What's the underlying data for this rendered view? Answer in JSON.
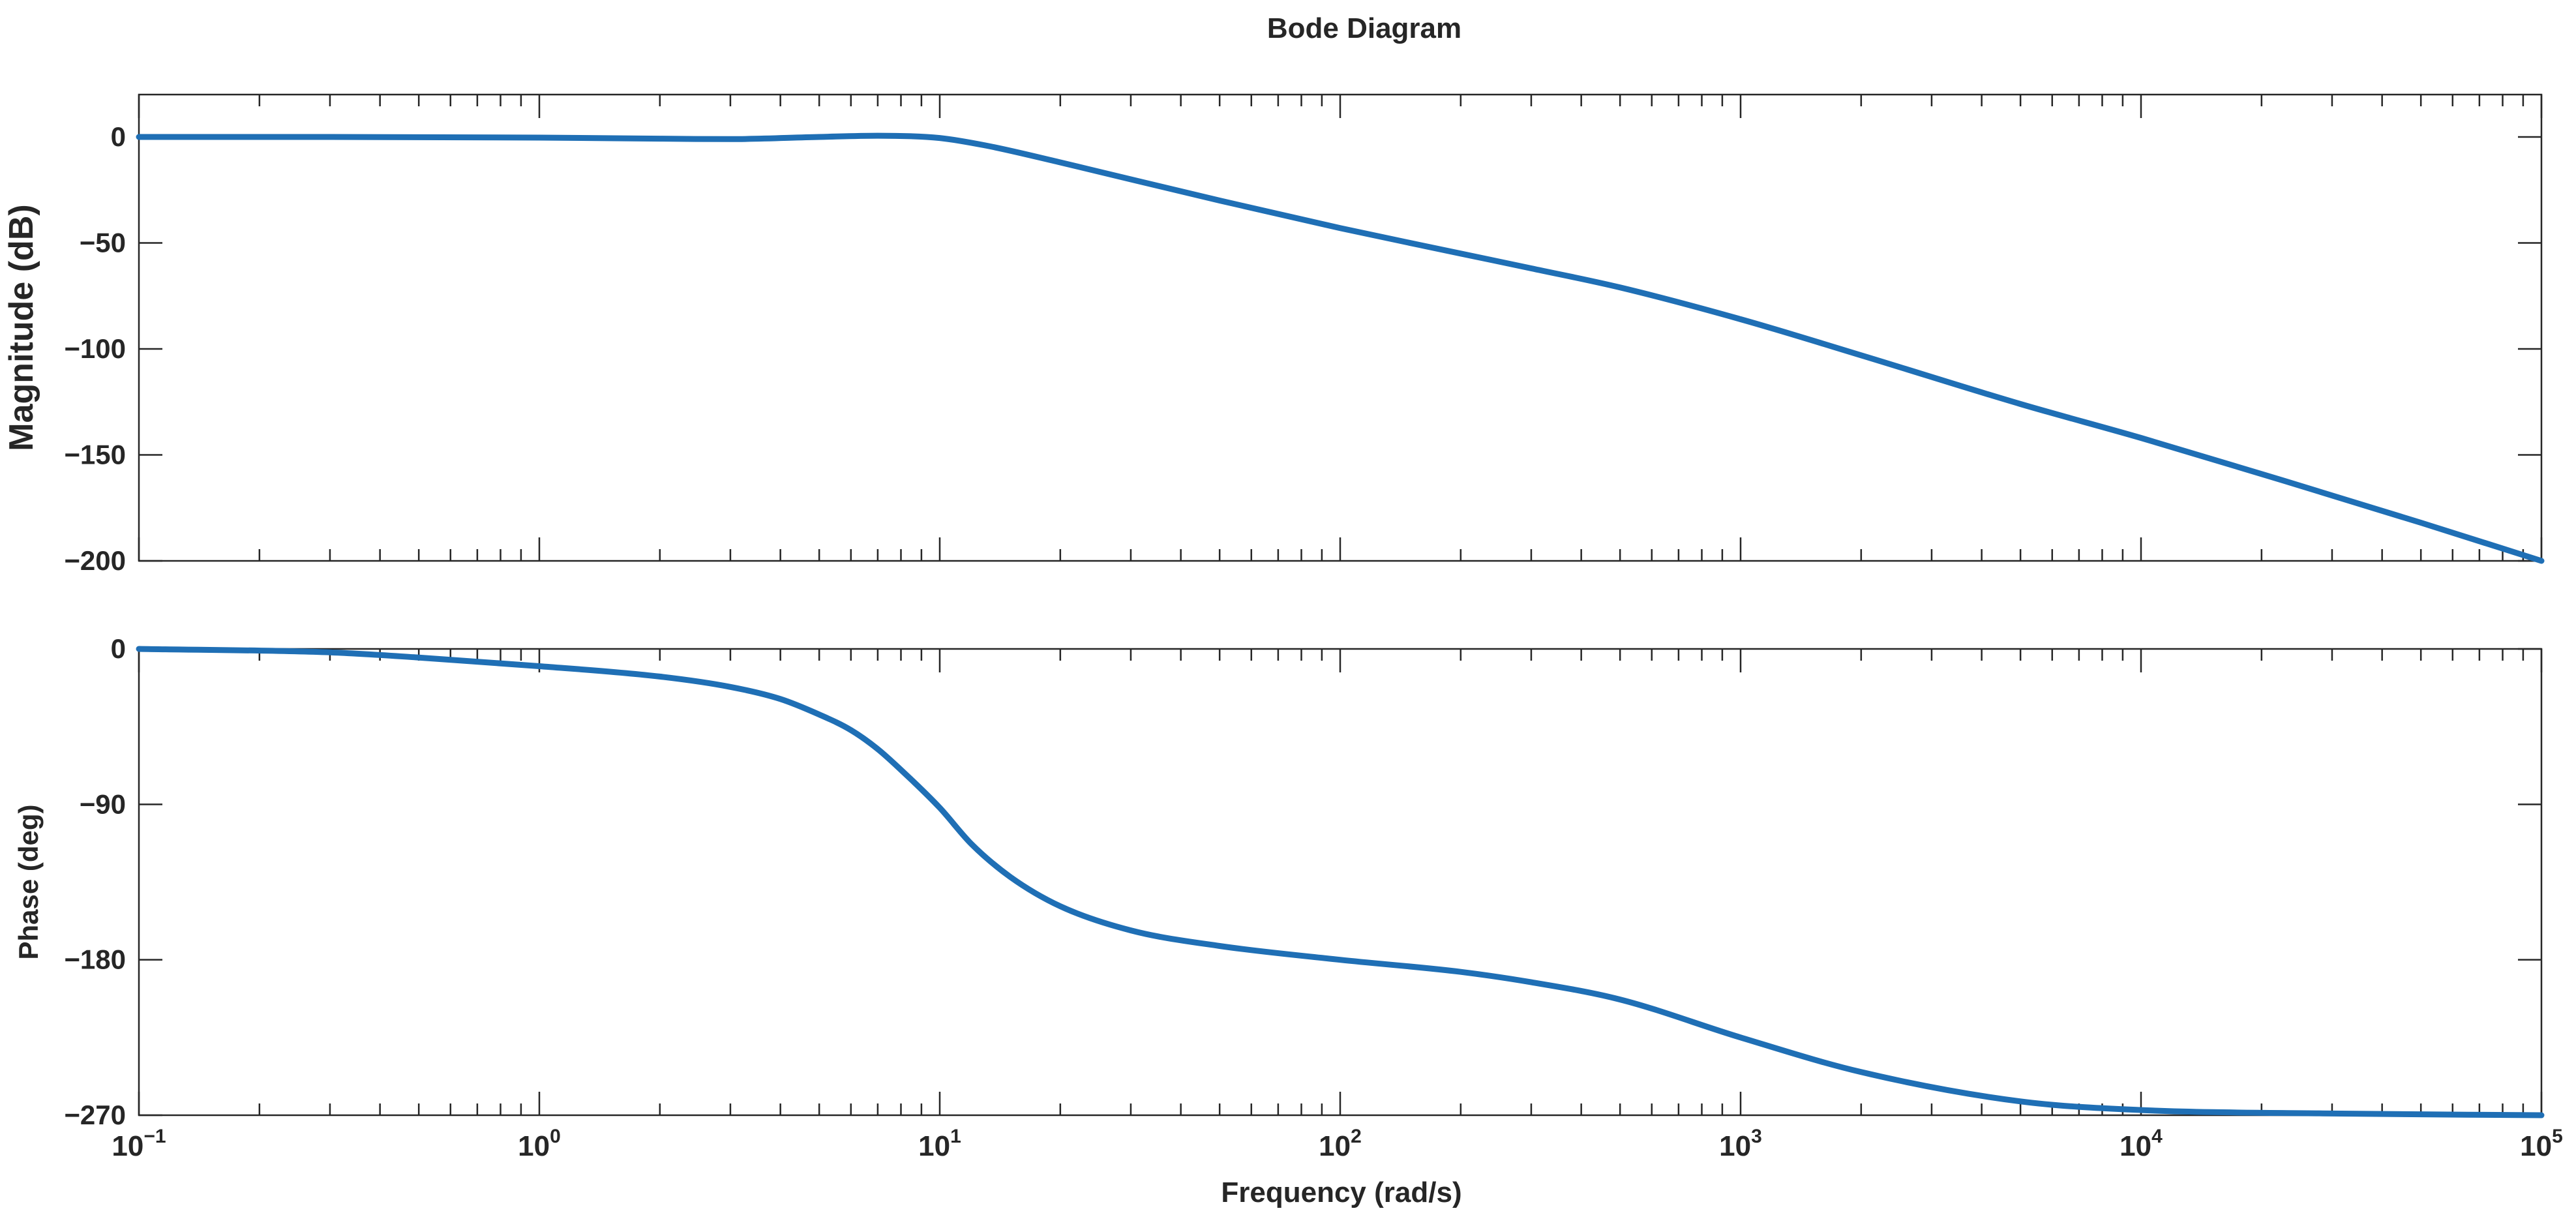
{
  "chart_data": {
    "type": "line",
    "title": "Bode Diagram",
    "xlabel": "Frequency (rad/s)",
    "x_scale": "log",
    "xlim": [
      0.1,
      100000
    ],
    "x_ticks": [
      {
        "value": 0.1,
        "base": "10",
        "exp": "−1"
      },
      {
        "value": 1,
        "base": "10",
        "exp": "0"
      },
      {
        "value": 10,
        "base": "10",
        "exp": "1"
      },
      {
        "value": 100,
        "base": "10",
        "exp": "2"
      },
      {
        "value": 1000,
        "base": "10",
        "exp": "3"
      },
      {
        "value": 10000,
        "base": "10",
        "exp": "4"
      },
      {
        "value": 100000,
        "base": "10",
        "exp": "5"
      }
    ],
    "grid": false,
    "panels": [
      {
        "ylabel": "Magnitude (dB)",
        "ylim": [
          -200,
          20
        ],
        "y_ticks": [
          {
            "value": 0,
            "label": "0"
          },
          {
            "value": -50,
            "label": "−50"
          },
          {
            "value": -100,
            "label": "−100"
          },
          {
            "value": -150,
            "label": "−150"
          },
          {
            "value": -200,
            "label": "−200"
          }
        ],
        "series": [
          {
            "color": "#1f6fb5",
            "x": [
              0.1,
              0.3,
              1,
              2,
              3,
              5,
              7,
              10,
              13,
              20,
              30,
              50,
              100,
              200,
              300,
              500,
              1000,
              2000,
              5000,
              10000,
              20000,
              50000,
              100000
            ],
            "y": [
              0,
              0,
              -0.3,
              -0.8,
              -1,
              0,
              0.6,
              -0.5,
              -4,
              -12,
              -20,
              -30,
              -43,
              -55,
              -62,
              -71,
              -86,
              -103,
              -126,
              -142,
              -159,
              -182,
              -200
            ]
          }
        ]
      },
      {
        "ylabel": "Phase (deg)",
        "ylim": [
          -270,
          0
        ],
        "y_ticks": [
          {
            "value": 0,
            "label": "0"
          },
          {
            "value": -90,
            "label": "−90"
          },
          {
            "value": -180,
            "label": "−180"
          },
          {
            "value": -270,
            "label": "−270"
          }
        ],
        "series": [
          {
            "color": "#1f6fb5",
            "x": [
              0.1,
              0.3,
              0.5,
              1,
              2,
              3,
              4,
              5,
              6,
              7,
              8,
              10,
              12,
              15,
              20,
              30,
              50,
              100,
              200,
              300,
              500,
              1000,
              2000,
              5000,
              10000,
              30000,
              100000
            ],
            "y": [
              0,
              -2,
              -5,
              -10,
              -16,
              -22,
              -29,
              -38,
              -47,
              -58,
              -70,
              -92,
              -113,
              -132,
              -149,
              -163,
              -172,
              -180,
              -187,
              -193,
              -203,
              -225,
              -245,
              -262,
              -267,
              -269,
              -270
            ]
          }
        ]
      }
    ]
  }
}
